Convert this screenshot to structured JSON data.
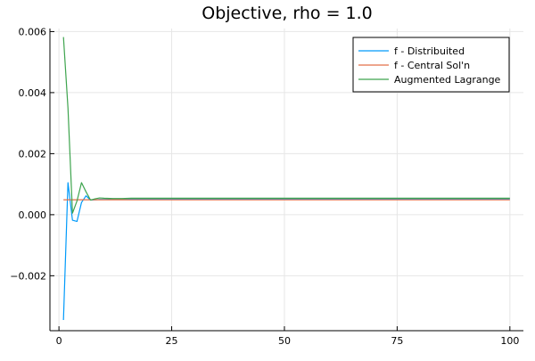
{
  "chart_data": {
    "type": "line",
    "title": "Objective, rho = 1.0",
    "xlabel": "",
    "ylabel": "",
    "xlim": [
      -2,
      103
    ],
    "ylim": [
      -0.0038,
      0.0061
    ],
    "xticks": [
      0,
      25,
      50,
      75,
      100
    ],
    "xtick_labels": [
      "0",
      "25",
      "50",
      "75",
      "100"
    ],
    "yticks": [
      -0.002,
      0,
      0.002,
      0.004,
      0.006
    ],
    "ytick_labels": [
      "−0.002",
      "0.000",
      "0.002",
      "0.004",
      "0.006"
    ],
    "grid": true,
    "legend_position": "top-right",
    "series": [
      {
        "name": "f - Distribuited",
        "color": "#009AFA",
        "x": [
          1,
          2,
          3,
          4,
          5,
          6,
          7,
          8,
          9,
          10,
          12,
          14,
          16,
          18,
          20,
          25,
          30,
          40,
          50,
          60,
          70,
          80,
          90,
          100
        ],
        "y": [
          -0.00345,
          0.00105,
          -0.00018,
          -0.00022,
          0.0004,
          0.00062,
          0.00048,
          0.00049,
          0.0005,
          0.0005,
          0.00051,
          0.00052,
          0.00052,
          0.00052,
          0.00052,
          0.00052,
          0.00052,
          0.00052,
          0.00052,
          0.00052,
          0.00052,
          0.00052,
          0.00052,
          0.00052
        ]
      },
      {
        "name": "f - Central Sol'n",
        "color": "#E36F47",
        "x": [
          1,
          100
        ],
        "y": [
          0.00049,
          0.00049
        ]
      },
      {
        "name": "Augmented Lagrange",
        "color": "#3EA44E",
        "x": [
          1,
          2,
          3,
          4,
          5,
          6,
          7,
          8,
          9,
          10,
          12,
          14,
          16,
          18,
          20,
          25,
          30,
          40,
          50,
          60,
          70,
          80,
          90,
          100
        ],
        "y": [
          0.00582,
          0.0035,
          5e-05,
          0.00045,
          0.00105,
          0.00075,
          0.00048,
          0.00052,
          0.00055,
          0.00054,
          0.00053,
          0.00053,
          0.00054,
          0.00054,
          0.00054,
          0.00054,
          0.00054,
          0.00054,
          0.00054,
          0.00054,
          0.00054,
          0.00054,
          0.00054,
          0.00054
        ]
      }
    ]
  }
}
